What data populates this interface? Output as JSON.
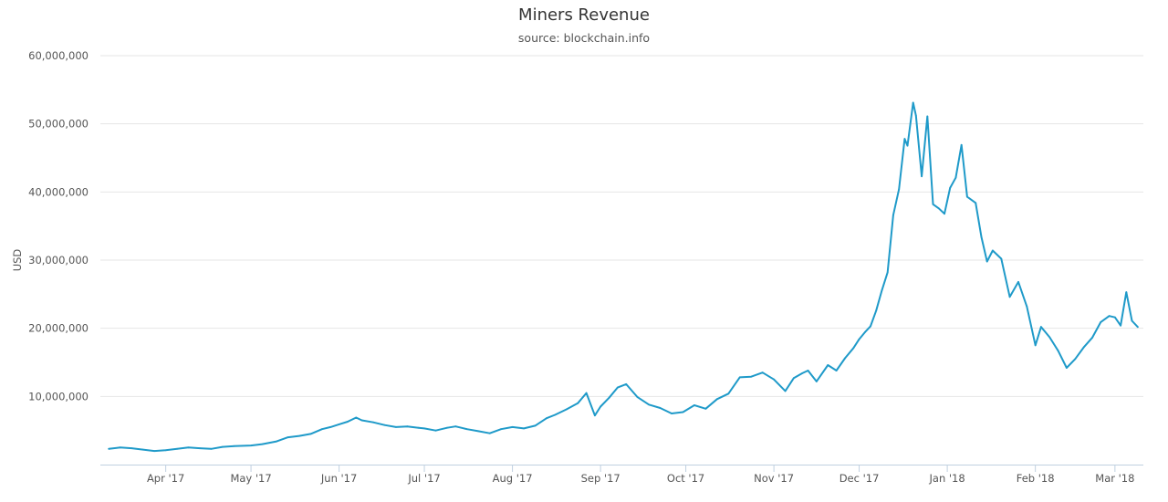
{
  "chart_data": {
    "type": "line",
    "title": "Miners Revenue",
    "subtitle": "source: blockchain.info",
    "xlabel": "",
    "ylabel": "USD",
    "ylim": [
      0,
      60000000
    ],
    "yticks": [
      10000000,
      20000000,
      30000000,
      40000000,
      50000000,
      60000000
    ],
    "ytick_labels": [
      "10,000,000",
      "20,000,000",
      "30,000,000",
      "40,000,000",
      "50,000,000",
      "60,000,000"
    ],
    "xlim": [
      "2017-03-09",
      "2018-03-11"
    ],
    "xticks": [
      "2017-04-01",
      "2017-05-01",
      "2017-06-01",
      "2017-07-01",
      "2017-08-01",
      "2017-09-01",
      "2017-10-01",
      "2017-11-01",
      "2017-12-01",
      "2018-01-01",
      "2018-02-01",
      "2018-03-01"
    ],
    "xtick_labels": [
      "Apr '17",
      "May '17",
      "Jun '17",
      "Jul '17",
      "Aug '17",
      "Sep '17",
      "Oct '17",
      "Nov '17",
      "Dec '17",
      "Jan '18",
      "Feb '18",
      "Mar '18"
    ],
    "grid": true,
    "color": "#1f9ac9",
    "series": [
      {
        "x": [
          "2017-03-12",
          "2017-03-16",
          "2017-03-20",
          "2017-03-24",
          "2017-03-28",
          "2017-04-01",
          "2017-04-05",
          "2017-04-09",
          "2017-04-13",
          "2017-04-17",
          "2017-04-21",
          "2017-04-25",
          "2017-05-01",
          "2017-05-05",
          "2017-05-10",
          "2017-05-14",
          "2017-05-18",
          "2017-05-22",
          "2017-05-26",
          "2017-05-29",
          "2017-06-01",
          "2017-06-04",
          "2017-06-07",
          "2017-06-09",
          "2017-06-13",
          "2017-06-17",
          "2017-06-21",
          "2017-06-25",
          "2017-06-29",
          "2017-07-01",
          "2017-07-05",
          "2017-07-09",
          "2017-07-12",
          "2017-07-16",
          "2017-07-20",
          "2017-07-24",
          "2017-07-28",
          "2017-08-01",
          "2017-08-05",
          "2017-08-09",
          "2017-08-13",
          "2017-08-16",
          "2017-08-20",
          "2017-08-24",
          "2017-08-27",
          "2017-08-30",
          "2017-09-01",
          "2017-09-04",
          "2017-09-07",
          "2017-09-10",
          "2017-09-14",
          "2017-09-18",
          "2017-09-22",
          "2017-09-26",
          "2017-09-30",
          "2017-10-04",
          "2017-10-08",
          "2017-10-12",
          "2017-10-16",
          "2017-10-20",
          "2017-10-24",
          "2017-10-28",
          "2017-11-01",
          "2017-11-05",
          "2017-11-08",
          "2017-11-11",
          "2017-11-13",
          "2017-11-16",
          "2017-11-20",
          "2017-11-23",
          "2017-11-26",
          "2017-11-29",
          "2017-12-01",
          "2017-12-03",
          "2017-12-05",
          "2017-12-07",
          "2017-12-09",
          "2017-12-11",
          "2017-12-13",
          "2017-12-15",
          "2017-12-17",
          "2017-12-18",
          "2017-12-20",
          "2017-12-21",
          "2017-12-23",
          "2017-12-25",
          "2017-12-27",
          "2017-12-29",
          "2017-12-31",
          "2018-01-02",
          "2018-01-04",
          "2018-01-06",
          "2018-01-08",
          "2018-01-11",
          "2018-01-13",
          "2018-01-15",
          "2018-01-17",
          "2018-01-20",
          "2018-01-23",
          "2018-01-26",
          "2018-01-29",
          "2018-02-01",
          "2018-02-03",
          "2018-02-06",
          "2018-02-09",
          "2018-02-12",
          "2018-02-15",
          "2018-02-18",
          "2018-02-21",
          "2018-02-24",
          "2018-02-27",
          "2018-03-01",
          "2018-03-03",
          "2018-03-05",
          "2018-03-07",
          "2018-03-09"
        ],
        "values": [
          2300000,
          2500000,
          2400000,
          2200000,
          2000000,
          2100000,
          2300000,
          2500000,
          2400000,
          2300000,
          2600000,
          2700000,
          2800000,
          3000000,
          3400000,
          4000000,
          4200000,
          4500000,
          5200000,
          5500000,
          5900000,
          6300000,
          6900000,
          6500000,
          6200000,
          5800000,
          5500000,
          5600000,
          5400000,
          5300000,
          5000000,
          5400000,
          5600000,
          5200000,
          4900000,
          4600000,
          5200000,
          5500000,
          5300000,
          5700000,
          6800000,
          7300000,
          8100000,
          9000000,
          10500000,
          7200000,
          8500000,
          9800000,
          11300000,
          11800000,
          9900000,
          8800000,
          8300000,
          7500000,
          7700000,
          8700000,
          8200000,
          9600000,
          10400000,
          12800000,
          12900000,
          13500000,
          12500000,
          10800000,
          12700000,
          13400000,
          13800000,
          12200000,
          14600000,
          13800000,
          15600000,
          17100000,
          18400000,
          19400000,
          20300000,
          22600000,
          25600000,
          28200000,
          36600000,
          40400000,
          47800000,
          46800000,
          53100000,
          51200000,
          42300000,
          51100000,
          38200000,
          37600000,
          36800000,
          40600000,
          42100000,
          46900000,
          39300000,
          38400000,
          33400000,
          29800000,
          31400000,
          30200000,
          24600000,
          26800000,
          23200000,
          17500000,
          20200000,
          18700000,
          16700000,
          14200000,
          15500000,
          17200000,
          18600000,
          20900000,
          21800000,
          21600000,
          20400000,
          25300000,
          21100000,
          20200000
        ]
      }
    ]
  },
  "title": "Miners Revenue",
  "subtitle": "source: blockchain.info",
  "ylabel": "USD"
}
